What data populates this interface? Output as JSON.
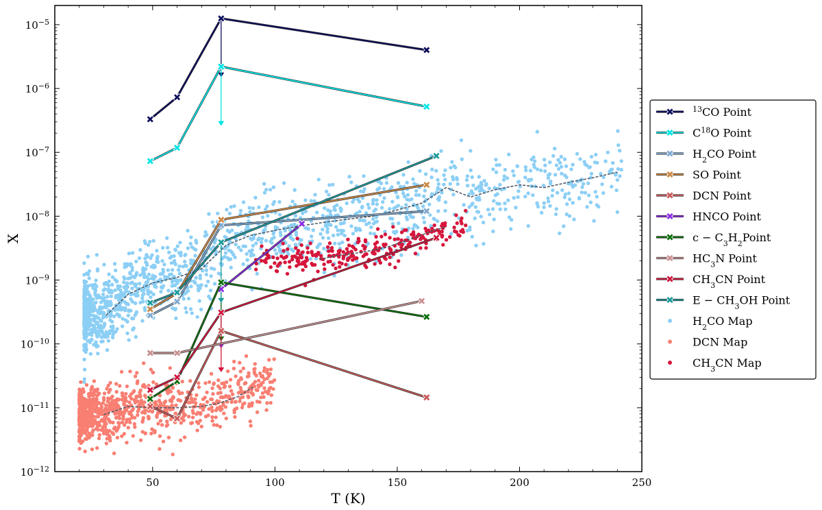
{
  "chart_data": {
    "type": "scatter",
    "title": "",
    "xlabel": "T (K)",
    "ylabel": "X",
    "xlim": [
      10,
      250
    ],
    "ylim_log10": [
      -12,
      -4.7
    ],
    "yscale": "log",
    "x_ticks": [
      50,
      100,
      150,
      200,
      250
    ],
    "y_ticks": [
      {
        "exp": -12,
        "label_base": "10",
        "label_exp": "−12"
      },
      {
        "exp": -11,
        "label_base": "10",
        "label_exp": "−11"
      },
      {
        "exp": -10,
        "label_base": "10",
        "label_exp": "−10"
      },
      {
        "exp": -9,
        "label_base": "10",
        "label_exp": "−9"
      },
      {
        "exp": -8,
        "label_base": "10",
        "label_exp": "−8"
      },
      {
        "exp": -7,
        "label_base": "10",
        "label_exp": "−7"
      },
      {
        "exp": -6,
        "label_base": "10",
        "label_exp": "−6"
      },
      {
        "exp": -5,
        "label_base": "10",
        "label_exp": "−5"
      }
    ],
    "legend_position": "outside right",
    "point_series": [
      {
        "name": "13CO Point",
        "label_parts": [
          [
            "",
            ""
          ],
          [
            "sup",
            "13"
          ],
          [
            "",
            "CO Point"
          ]
        ],
        "color": "#0b0b5c",
        "points": [
          [
            49,
            3.3e-07
          ],
          [
            60,
            7.3e-07
          ],
          [
            78,
            1.25e-05
          ],
          [
            162,
            4e-06
          ]
        ],
        "upper_limits": [
          {
            "x": 78,
            "from": 1.25e-05,
            "to": 1.5e-06
          }
        ]
      },
      {
        "name": "C18O Point",
        "label_parts": [
          [
            "",
            "C"
          ],
          [
            "sup",
            "18"
          ],
          [
            "",
            "O Point"
          ]
        ],
        "color": "#00e6e6",
        "points": [
          [
            49,
            7.3e-08
          ],
          [
            60,
            1.18e-07
          ],
          [
            78,
            2.2e-06
          ],
          [
            162,
            5.2e-07
          ]
        ],
        "upper_limits": [
          {
            "x": 78,
            "from": 2.2e-06,
            "to": 2.6e-07
          }
        ]
      },
      {
        "name": "H2CO Point",
        "label_parts": [
          [
            "",
            "H"
          ],
          [
            "sub",
            "2"
          ],
          [
            "",
            "CO Point"
          ]
        ],
        "color": "#7fa8cf",
        "points": [
          [
            49,
            2.8e-10
          ],
          [
            60,
            4.6e-10
          ],
          [
            78,
            7.2e-09
          ],
          [
            162,
            1.2e-08
          ]
        ],
        "upper_limits": []
      },
      {
        "name": "SO Point",
        "label_parts": [
          [
            "",
            "SO Point"
          ]
        ],
        "color": "#cc8844",
        "points": [
          [
            49,
            3.5e-10
          ],
          [
            60,
            6.2e-10
          ],
          [
            78,
            8.8e-09
          ],
          [
            162,
            3.1e-08
          ]
        ],
        "upper_limits": []
      },
      {
        "name": "DCN Point",
        "label_parts": [
          [
            "",
            "DCN Point"
          ]
        ],
        "color": "#c85a5a",
        "points": [
          [
            49,
            1.05e-11
          ],
          [
            60,
            6.8e-12
          ],
          [
            78,
            1.6e-10
          ],
          [
            162,
            1.45e-11
          ]
        ],
        "upper_limits": []
      },
      {
        "name": "HNCO Point",
        "label_parts": [
          [
            "",
            "HNCO Point"
          ]
        ],
        "color": "#8a2be2",
        "points": [
          [
            78,
            7.2e-10
          ],
          [
            111,
            7.6e-09
          ]
        ],
        "upper_limits": [
          {
            "x": 78,
            "from": 7.2e-10,
            "to": 8.5e-11
          }
        ]
      },
      {
        "name": "c − C3H2 Point",
        "label_parts": [
          [
            "",
            "c − C"
          ],
          [
            "sub",
            "3"
          ],
          [
            "",
            "H"
          ],
          [
            "sub",
            "2"
          ],
          [
            "",
            "Point"
          ]
        ],
        "color": "#0a6e0a",
        "points": [
          [
            49,
            1.38e-11
          ],
          [
            60,
            2.6e-11
          ],
          [
            78,
            9.2e-10
          ],
          [
            162,
            2.65e-10
          ]
        ],
        "upper_limits": [
          {
            "x": 78,
            "from": 9.2e-10,
            "to": 1.1e-10
          }
        ]
      },
      {
        "name": "HC3N Point",
        "label_parts": [
          [
            "",
            "HC"
          ],
          [
            "sub",
            "3"
          ],
          [
            "",
            "N Point"
          ]
        ],
        "color": "#c89090",
        "points": [
          [
            49,
            7.2e-11
          ],
          [
            60,
            7.2e-11
          ],
          [
            160,
            4.7e-10
          ]
        ],
        "upper_limits": []
      },
      {
        "name": "CH3CN Point",
        "label_parts": [
          [
            "",
            "CH"
          ],
          [
            "sub",
            "3"
          ],
          [
            "",
            "CN Point"
          ]
        ],
        "color": "#d0143c",
        "points": [
          [
            49,
            1.9e-11
          ],
          [
            60,
            3e-11
          ],
          [
            78,
            3.1e-10
          ],
          [
            166,
            4.6e-09
          ]
        ],
        "upper_limits": [
          {
            "x": 78,
            "from": 3.1e-10,
            "to": 3.6e-11
          }
        ]
      },
      {
        "name": "E − CH3OH Point",
        "label_parts": [
          [
            "",
            "E − CH"
          ],
          [
            "sub",
            "3"
          ],
          [
            "",
            "OH Point"
          ]
        ],
        "color": "#1a9a9a",
        "points": [
          [
            49,
            4.4e-10
          ],
          [
            60,
            6.4e-10
          ],
          [
            78,
            3.9e-09
          ],
          [
            166,
            8.8e-08
          ]
        ],
        "upper_limits": [
          {
            "x": 78,
            "from": 3.9e-09,
            "to": 4.4e-10
          }
        ]
      }
    ],
    "map_series": [
      {
        "name": "H2CO Map",
        "label_parts": [
          [
            "",
            "H"
          ],
          [
            "sub",
            "2"
          ],
          [
            "",
            "CO Map"
          ]
        ],
        "color": "#8ccff5",
        "trend": [
          [
            31,
            2.8e-10
          ],
          [
            40,
            6e-10
          ],
          [
            50,
            9e-10
          ],
          [
            60,
            1.1e-09
          ],
          [
            70,
            1.5e-09
          ],
          [
            80,
            3.5e-09
          ],
          [
            90,
            5e-09
          ],
          [
            100,
            6e-09
          ],
          [
            110,
            7e-09
          ],
          [
            120,
            8e-09
          ],
          [
            130,
            9e-09
          ],
          [
            140,
            1e-08
          ],
          [
            150,
            1.25e-08
          ],
          [
            160,
            1.6e-08
          ],
          [
            170,
            2.8e-08
          ],
          [
            180,
            2e-08
          ],
          [
            190,
            2.6e-08
          ],
          [
            200,
            3.1e-08
          ],
          [
            210,
            2.8e-08
          ],
          [
            220,
            3.4e-08
          ],
          [
            230,
            4e-08
          ],
          [
            240,
            4.9e-08
          ]
        ]
      },
      {
        "name": "DCN Map",
        "label_parts": [
          [
            "",
            "DCN Map"
          ]
        ],
        "color": "#f87f72",
        "trend": [
          [
            30,
            7.8e-12
          ],
          [
            40,
            1.05e-11
          ],
          [
            50,
            1e-11
          ],
          [
            60,
            1e-11
          ],
          [
            70,
            1.05e-11
          ],
          [
            78,
            1.2e-11
          ],
          [
            85,
            1.5e-11
          ],
          [
            91,
            2.1e-11
          ]
        ]
      },
      {
        "name": "CH3CN Map",
        "label_parts": [
          [
            "",
            "CH"
          ],
          [
            "sub",
            "3"
          ],
          [
            "",
            "CN Map"
          ]
        ],
        "color": "#d6163c",
        "trend": [
          [
            118,
            2.1e-09
          ],
          [
            125,
            2.4e-09
          ],
          [
            135,
            2.7e-09
          ],
          [
            145,
            3.2e-09
          ],
          [
            155,
            4.3e-09
          ],
          [
            165,
            6e-09
          ],
          [
            170,
            6.8e-09
          ]
        ]
      }
    ]
  }
}
